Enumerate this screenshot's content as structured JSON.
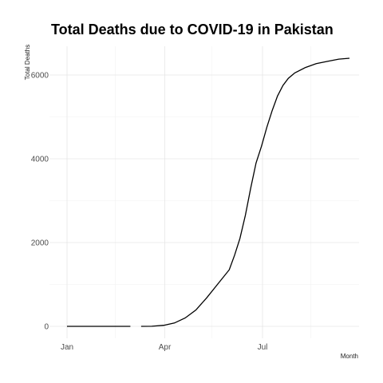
{
  "chart_data": {
    "type": "line",
    "title": "Total Deaths due to COVID-19 in Pakistan",
    "xlabel": "Month",
    "ylabel": "Total Deaths",
    "x_scale": "date",
    "xlim": [
      "2020-01-01",
      "2020-09-30"
    ],
    "ylim": [
      0,
      7000
    ],
    "x_ticks": [
      {
        "date": "2020-01-01",
        "label": "Jan"
      },
      {
        "date": "2020-04-01",
        "label": "Apr"
      },
      {
        "date": "2020-07-01",
        "label": "Jul"
      }
    ],
    "x_minor_ticks": [
      "2020-02-15",
      "2020-05-15",
      "2020-08-15"
    ],
    "y_ticks": [
      0,
      2000,
      4000,
      6000
    ],
    "y_minor_ticks": [
      1000,
      3000,
      5000
    ],
    "grid": true,
    "legend": "none",
    "line_color": "#000000",
    "series": [
      {
        "segments": [
          [
            {
              "x": "2020-01-01",
              "y": 0
            },
            {
              "x": "2020-02-29",
              "y": 0
            }
          ],
          [
            {
              "x": "2020-03-10",
              "y": 0
            },
            {
              "x": "2020-03-20",
              "y": 2
            },
            {
              "x": "2020-03-31",
              "y": 25
            },
            {
              "x": "2020-04-10",
              "y": 80
            },
            {
              "x": "2020-04-20",
              "y": 200
            },
            {
              "x": "2020-04-30",
              "y": 390
            },
            {
              "x": "2020-05-10",
              "y": 680
            },
            {
              "x": "2020-05-20",
              "y": 1000
            },
            {
              "x": "2020-05-31",
              "y": 1350
            },
            {
              "x": "2020-06-05",
              "y": 1700
            },
            {
              "x": "2020-06-10",
              "y": 2100
            },
            {
              "x": "2020-06-15",
              "y": 2650
            },
            {
              "x": "2020-06-20",
              "y": 3300
            },
            {
              "x": "2020-06-25",
              "y": 3900
            },
            {
              "x": "2020-06-30",
              "y": 4300
            },
            {
              "x": "2020-07-05",
              "y": 4750
            },
            {
              "x": "2020-07-10",
              "y": 5150
            },
            {
              "x": "2020-07-15",
              "y": 5500
            },
            {
              "x": "2020-07-20",
              "y": 5750
            },
            {
              "x": "2020-07-25",
              "y": 5920
            },
            {
              "x": "2020-07-31",
              "y": 6050
            },
            {
              "x": "2020-08-10",
              "y": 6180
            },
            {
              "x": "2020-08-20",
              "y": 6270
            },
            {
              "x": "2020-08-31",
              "y": 6330
            },
            {
              "x": "2020-09-10",
              "y": 6380
            },
            {
              "x": "2020-09-20",
              "y": 6400
            }
          ]
        ]
      }
    ]
  }
}
